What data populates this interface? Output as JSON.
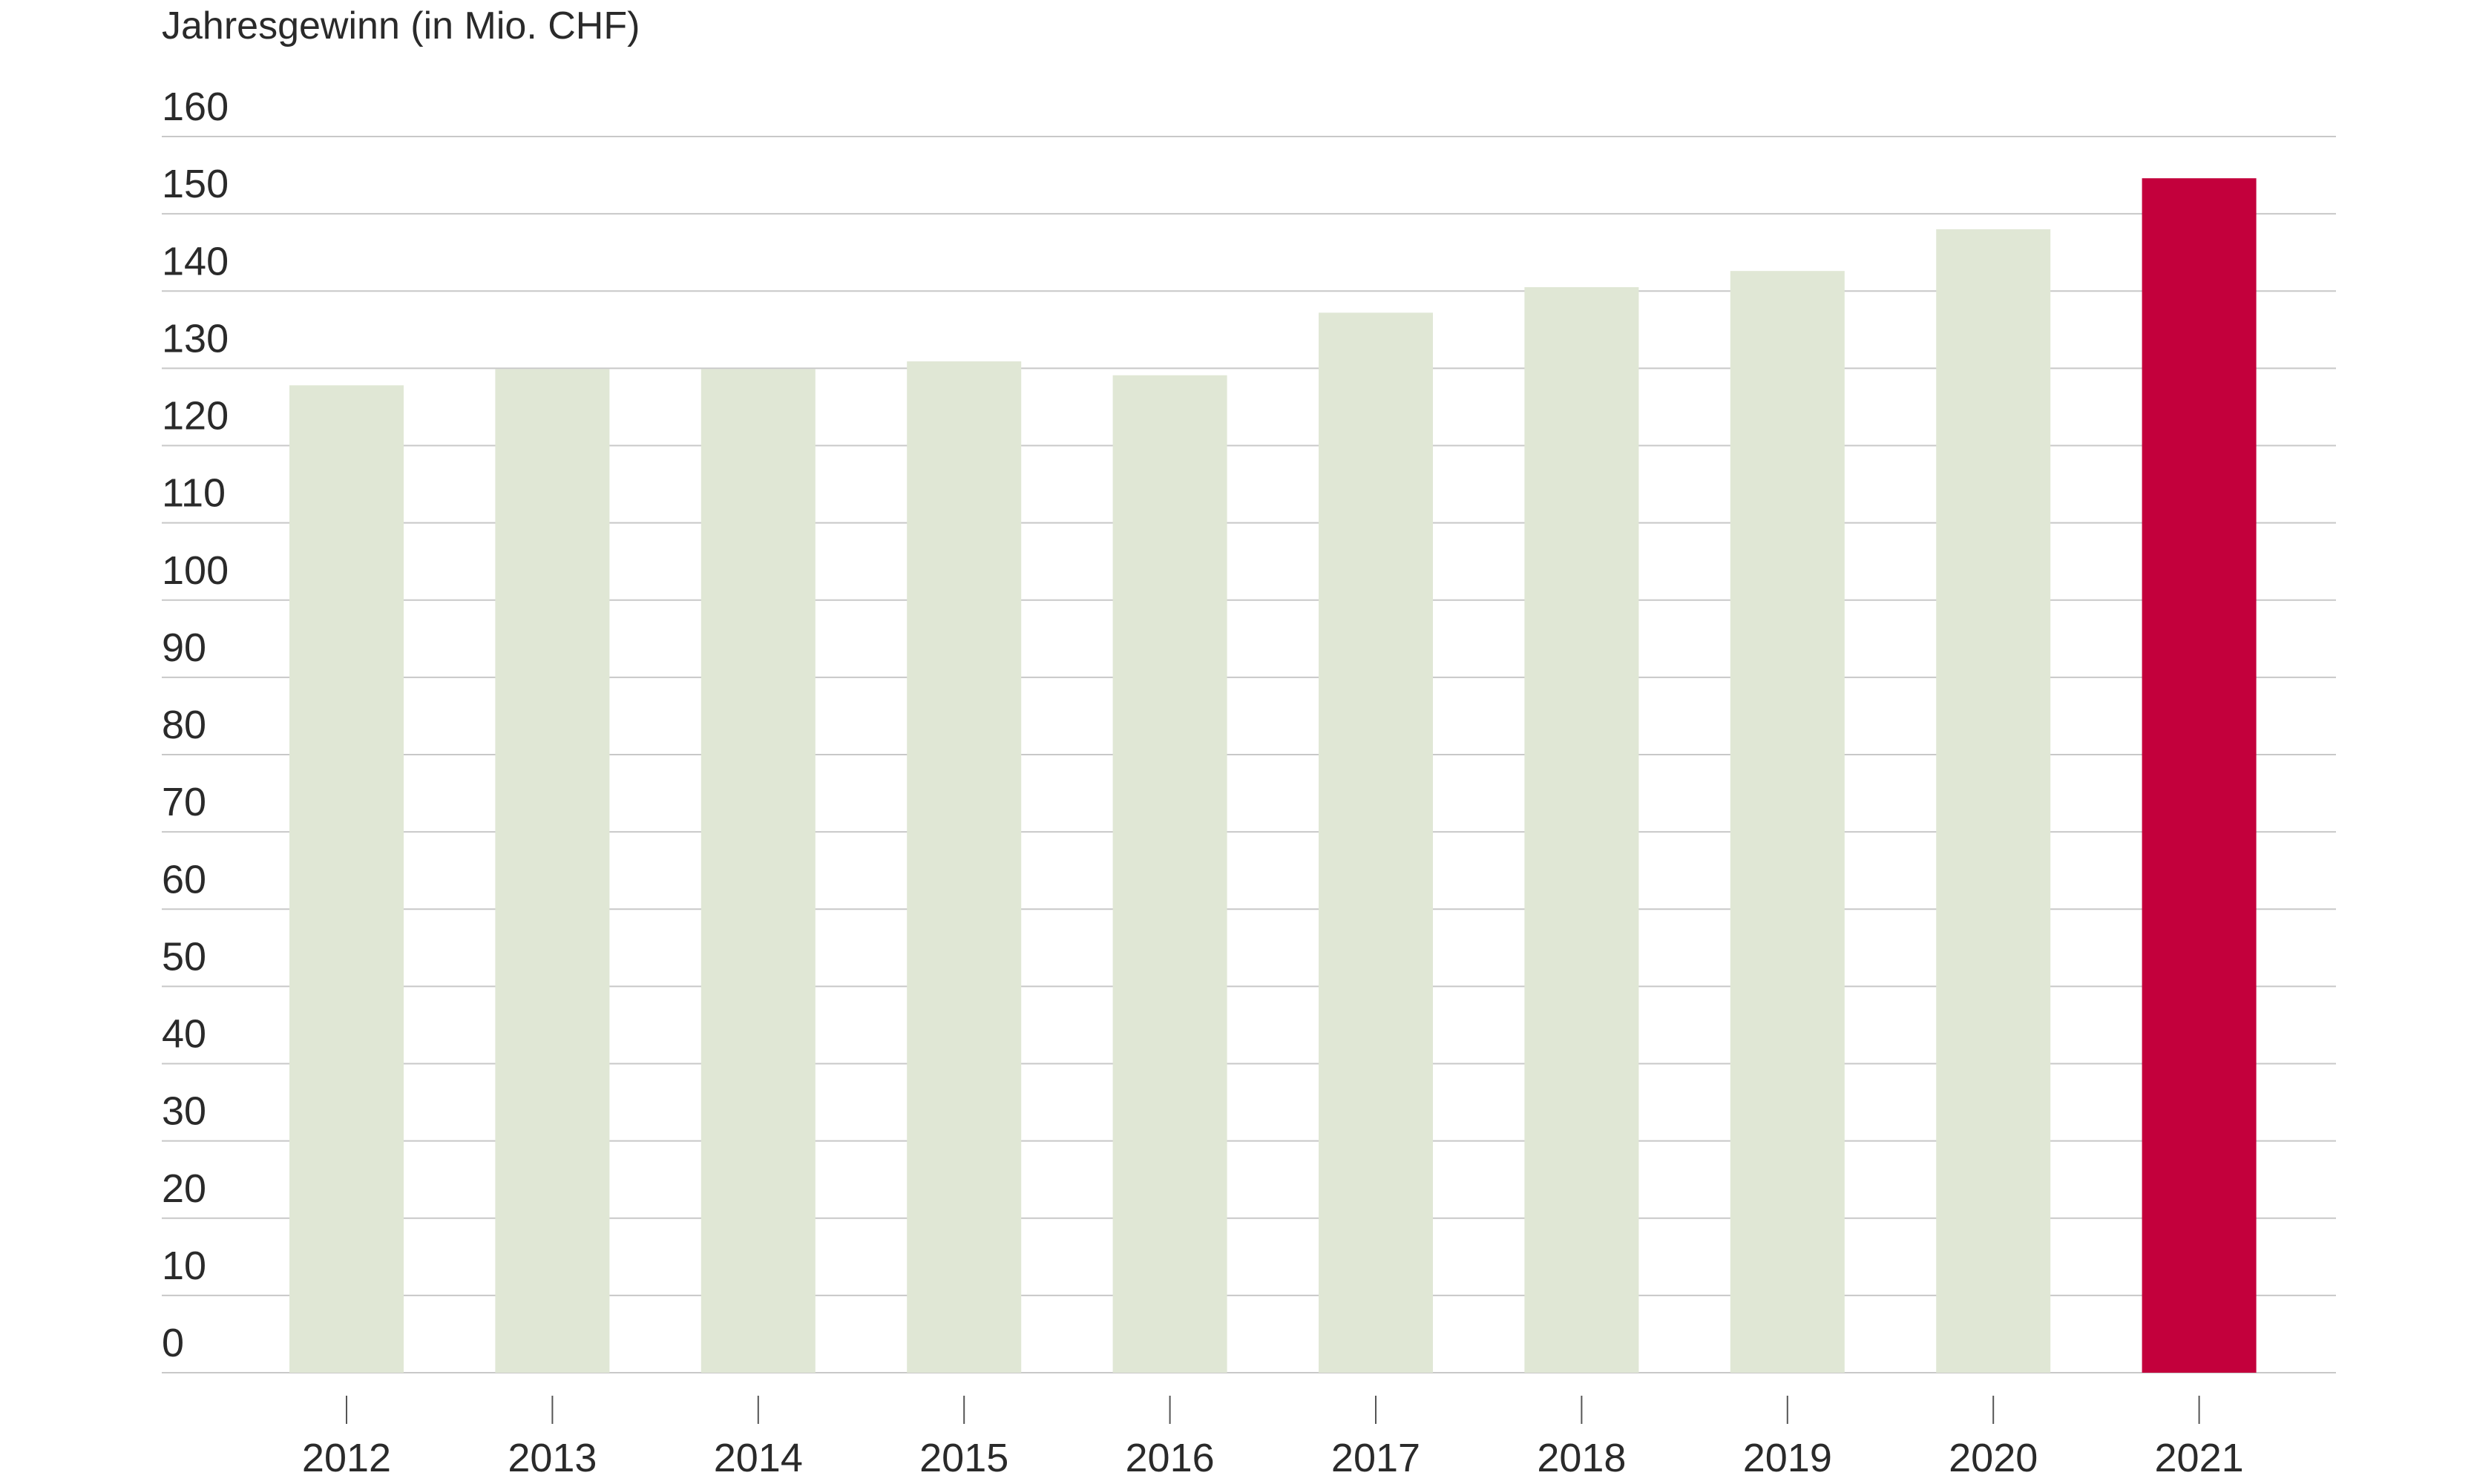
{
  "chart_data": {
    "type": "bar",
    "ylabel": "Jahresgewinn (in Mio. CHF)",
    "xlabel": "",
    "ylim": [
      0,
      160
    ],
    "y_ticks": [
      0,
      10,
      20,
      30,
      40,
      50,
      60,
      70,
      80,
      90,
      100,
      110,
      120,
      130,
      140,
      150,
      160
    ],
    "categories": [
      "2012",
      "2013",
      "2014",
      "2015",
      "2016",
      "2017",
      "2018",
      "2019",
      "2020",
      "2021"
    ],
    "values": [
      127.8,
      129.9,
      129.9,
      130.9,
      129.1,
      137.2,
      140.5,
      142.6,
      148.0,
      154.6
    ],
    "grid": true,
    "colors": {
      "bar": "#e0e7d5",
      "highlight_bar": "#c3003c",
      "grid": "#c8c8c8",
      "text": "#2a2a2a"
    },
    "highlight_category": "2021"
  }
}
